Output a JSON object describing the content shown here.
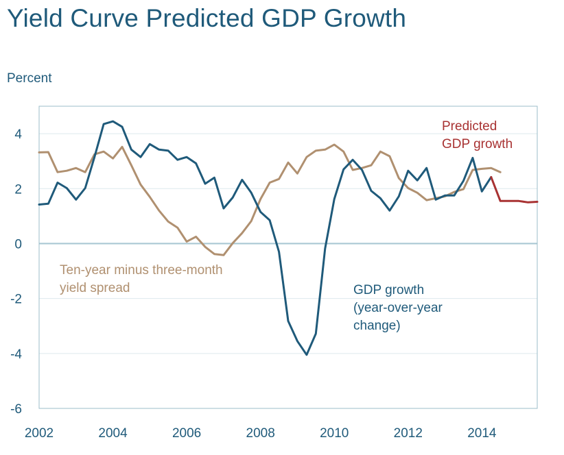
{
  "chart_data": {
    "type": "line",
    "title": "Yield Curve Predicted GDP Growth",
    "ylabel": "Percent",
    "xlabel": "",
    "xlim": [
      2002,
      2015.5
    ],
    "ylim": [
      -6,
      5
    ],
    "x_ticks": [
      2002,
      2004,
      2006,
      2008,
      2010,
      2012,
      2014
    ],
    "y_ticks": [
      -6,
      -4,
      -2,
      0,
      2,
      4
    ],
    "grid": "horizontal",
    "legend": "inline labels",
    "series": [
      {
        "color": "#b09070",
        "points": [
          [
            2002.0,
            3.32
          ],
          [
            2002.25,
            3.33
          ],
          [
            2002.5,
            2.6
          ],
          [
            2002.75,
            2.65
          ],
          [
            2003.0,
            2.75
          ],
          [
            2003.25,
            2.6
          ],
          [
            2003.5,
            3.25
          ],
          [
            2003.75,
            3.35
          ],
          [
            2004.0,
            3.1
          ],
          [
            2004.25,
            3.52
          ],
          [
            2004.5,
            2.85
          ],
          [
            2004.75,
            2.15
          ],
          [
            2005.0,
            1.7
          ],
          [
            2005.25,
            1.2
          ],
          [
            2005.5,
            0.8
          ],
          [
            2005.75,
            0.58
          ],
          [
            2006.0,
            0.07
          ],
          [
            2006.25,
            0.25
          ],
          [
            2006.5,
            -0.12
          ],
          [
            2006.75,
            -0.38
          ],
          [
            2007.0,
            -0.42
          ],
          [
            2007.25,
            0.02
          ],
          [
            2007.5,
            0.38
          ],
          [
            2007.75,
            0.82
          ],
          [
            2008.0,
            1.62
          ],
          [
            2008.25,
            2.22
          ],
          [
            2008.5,
            2.35
          ],
          [
            2008.75,
            2.95
          ],
          [
            2009.0,
            2.55
          ],
          [
            2009.25,
            3.15
          ],
          [
            2009.5,
            3.38
          ],
          [
            2009.75,
            3.42
          ],
          [
            2010.0,
            3.6
          ],
          [
            2010.25,
            3.35
          ],
          [
            2010.5,
            2.68
          ],
          [
            2010.75,
            2.75
          ],
          [
            2011.0,
            2.85
          ],
          [
            2011.25,
            3.35
          ],
          [
            2011.5,
            3.18
          ],
          [
            2011.75,
            2.38
          ],
          [
            2012.0,
            2.02
          ],
          [
            2012.25,
            1.85
          ],
          [
            2012.5,
            1.58
          ],
          [
            2012.75,
            1.65
          ],
          [
            2013.0,
            1.72
          ],
          [
            2013.25,
            1.88
          ],
          [
            2013.5,
            1.98
          ],
          [
            2013.75,
            2.68
          ],
          [
            2014.0,
            2.72
          ],
          [
            2014.25,
            2.75
          ],
          [
            2014.5,
            2.6
          ]
        ]
      },
      {
        "color": "#1f5a7a",
        "points": [
          [
            2002.0,
            1.42
          ],
          [
            2002.25,
            1.45
          ],
          [
            2002.5,
            2.22
          ],
          [
            2002.75,
            2.02
          ],
          [
            2003.0,
            1.6
          ],
          [
            2003.25,
            2.02
          ],
          [
            2003.5,
            3.15
          ],
          [
            2003.75,
            4.35
          ],
          [
            2004.0,
            4.45
          ],
          [
            2004.25,
            4.25
          ],
          [
            2004.5,
            3.42
          ],
          [
            2004.75,
            3.15
          ],
          [
            2005.0,
            3.62
          ],
          [
            2005.25,
            3.42
          ],
          [
            2005.5,
            3.38
          ],
          [
            2005.75,
            3.05
          ],
          [
            2006.0,
            3.15
          ],
          [
            2006.25,
            2.92
          ],
          [
            2006.5,
            2.18
          ],
          [
            2006.75,
            2.4
          ],
          [
            2007.0,
            1.28
          ],
          [
            2007.25,
            1.68
          ],
          [
            2007.5,
            2.32
          ],
          [
            2007.75,
            1.85
          ],
          [
            2008.0,
            1.15
          ],
          [
            2008.25,
            0.85
          ],
          [
            2008.5,
            -0.3
          ],
          [
            2008.75,
            -2.82
          ],
          [
            2009.0,
            -3.55
          ],
          [
            2009.25,
            -4.05
          ],
          [
            2009.5,
            -3.28
          ],
          [
            2009.75,
            -0.18
          ],
          [
            2010.0,
            1.62
          ],
          [
            2010.25,
            2.7
          ],
          [
            2010.5,
            3.05
          ],
          [
            2010.75,
            2.68
          ],
          [
            2011.0,
            1.92
          ],
          [
            2011.25,
            1.65
          ],
          [
            2011.5,
            1.2
          ],
          [
            2011.75,
            1.72
          ],
          [
            2012.0,
            2.65
          ],
          [
            2012.25,
            2.3
          ],
          [
            2012.5,
            2.75
          ],
          [
            2012.75,
            1.6
          ],
          [
            2013.0,
            1.75
          ],
          [
            2013.25,
            1.75
          ],
          [
            2013.5,
            2.28
          ],
          [
            2013.75,
            3.12
          ],
          [
            2014.0,
            1.9
          ],
          [
            2014.25,
            2.42
          ]
        ]
      },
      {
        "color": "#a83232",
        "points": [
          [
            2014.25,
            2.42
          ],
          [
            2014.5,
            1.55
          ],
          [
            2014.75,
            1.55
          ],
          [
            2015.0,
            1.55
          ],
          [
            2015.25,
            1.5
          ],
          [
            2015.5,
            1.52
          ]
        ]
      }
    ],
    "annotations": [
      {
        "lines": [
          "Ten-year minus three-month",
          "yield spread"
        ],
        "color": "#b09070"
      },
      {
        "lines": [
          "GDP growth",
          "(year-over-year",
          "change)"
        ],
        "color": "#1f5a7a"
      },
      {
        "lines": [
          "Predicted",
          "GDP growth"
        ],
        "color": "#a83232"
      }
    ]
  }
}
